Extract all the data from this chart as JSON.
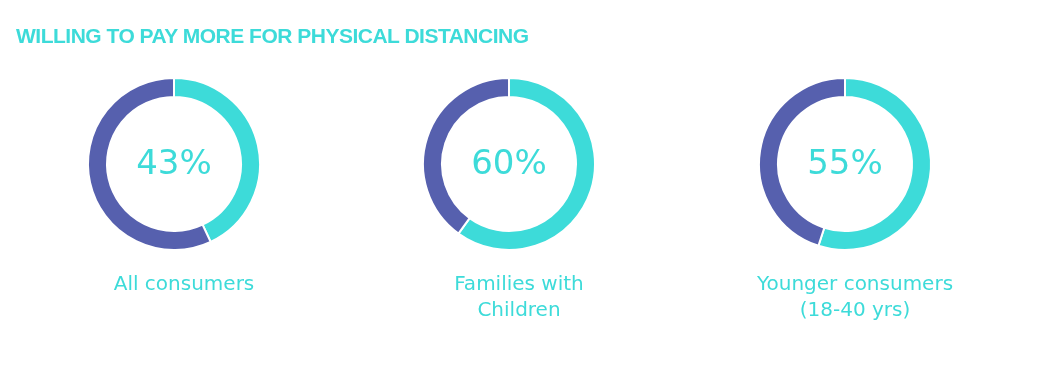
{
  "chart_data": [
    {
      "type": "donut",
      "title": "WILLING TO PAY MORE FOR PHYSICAL DISTANCING",
      "xlabel": "All consumers",
      "categories": [
        null,
        null
      ],
      "values": [
        43,
        57
      ],
      "colors": [
        "#3ddbd9",
        "#5660ae"
      ],
      "value_labels": [
        "43%",
        null
      ]
    },
    {
      "type": "donut",
      "xlabel": "Families with Children",
      "categories": [
        null,
        null
      ],
      "values": [
        60,
        40
      ],
      "colors": [
        "#3ddbd9",
        "#5660ae"
      ],
      "value_labels": [
        "60%",
        null
      ]
    },
    {
      "type": "donut",
      "xlabel": "Younger consumers (18-40 yrs)",
      "categories": [
        null,
        null
      ],
      "values": [
        55,
        45
      ],
      "colors": [
        "#3ddbd9",
        "#5660ae"
      ],
      "value_labels": [
        "55%",
        null
      ]
    }
  ]
}
